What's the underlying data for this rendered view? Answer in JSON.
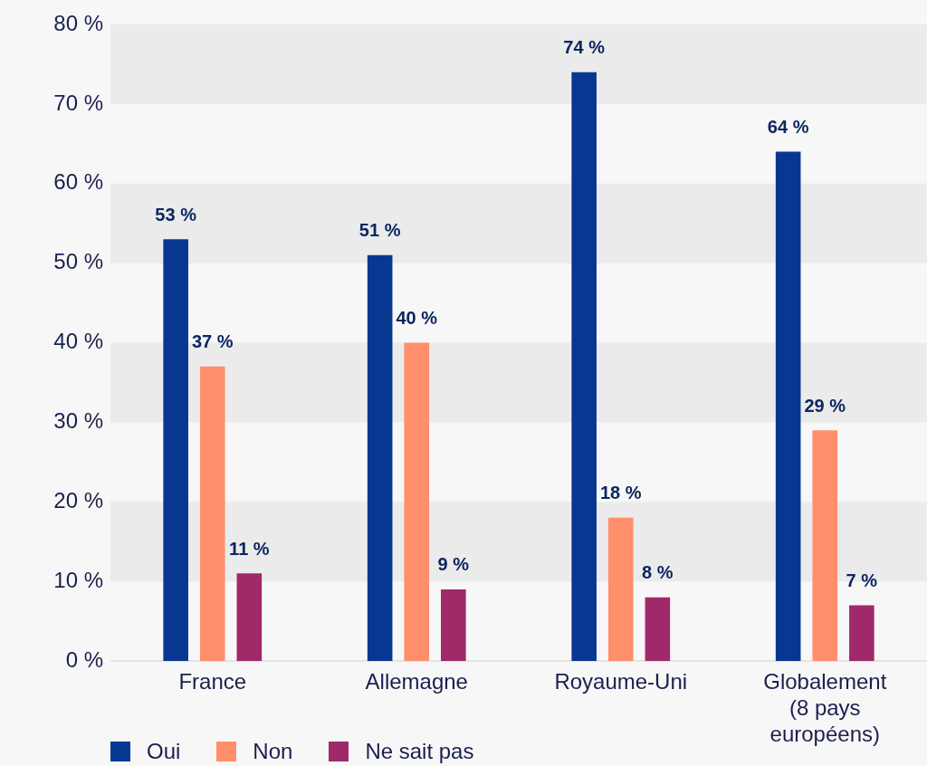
{
  "chart_data": {
    "type": "bar",
    "categories": [
      "France",
      "Allemagne",
      "Royaume-Uni",
      "Globalement\n(8 pays\neuropéens)"
    ],
    "series": [
      {
        "name": "Oui",
        "color": "#083791",
        "values": [
          53,
          51,
          74,
          64
        ],
        "value_labels": [
          "53 %",
          "51 %",
          "74 %",
          "64 %"
        ]
      },
      {
        "name": "Non",
        "color": "#ff8f6b",
        "values": [
          37,
          40,
          18,
          29
        ],
        "value_labels": [
          "37 %",
          "40 %",
          "18 %",
          "29 %"
        ]
      },
      {
        "name": "Ne sait pas",
        "color": "#a0296a",
        "values": [
          11,
          9,
          8,
          7
        ],
        "value_labels": [
          "11 %",
          "9 %",
          "8 %",
          "7 %"
        ]
      }
    ],
    "ylim": [
      0,
      80
    ],
    "yticks": [
      {
        "value": 0,
        "label": "0 %"
      },
      {
        "value": 10,
        "label": "10 %"
      },
      {
        "value": 20,
        "label": "20 %"
      },
      {
        "value": 30,
        "label": "30 %"
      },
      {
        "value": 40,
        "label": "40 %"
      },
      {
        "value": 50,
        "label": "50 %"
      },
      {
        "value": 60,
        "label": "60 %"
      },
      {
        "value": 70,
        "label": "70 %"
      },
      {
        "value": 80,
        "label": "80 %"
      }
    ],
    "bands": [
      {
        "axis": "y",
        "from": 70,
        "to": 80,
        "color": "#ebebeb"
      },
      {
        "axis": "y",
        "from": 50,
        "to": 60,
        "color": "#ebebeb"
      },
      {
        "axis": "y",
        "from": 30,
        "to": 40,
        "color": "#ebebeb"
      },
      {
        "axis": "y",
        "from": 10,
        "to": 20,
        "color": "#ebebeb"
      }
    ],
    "legend": "bottom left"
  }
}
